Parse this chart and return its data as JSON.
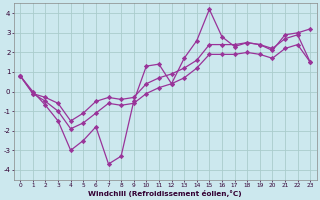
{
  "xlabel": "Windchill (Refroidissement éolien,°C)",
  "background_color": "#cce8ee",
  "line_color": "#993399",
  "grid_color": "#aacccc",
  "xlim": [
    -0.5,
    23.5
  ],
  "ylim": [
    -4.5,
    4.5
  ],
  "hours": [
    0,
    1,
    2,
    3,
    4,
    5,
    6,
    7,
    8,
    9,
    10,
    11,
    12,
    13,
    14,
    15,
    16,
    17,
    18,
    19,
    20,
    21,
    22,
    23
  ],
  "main_values": [
    0.8,
    0.0,
    -0.7,
    -1.5,
    -3.0,
    -2.5,
    -1.8,
    -3.7,
    -3.3,
    -0.5,
    1.3,
    1.4,
    0.4,
    1.7,
    2.6,
    4.2,
    2.8,
    2.3,
    2.5,
    2.4,
    2.1,
    2.9,
    3.0,
    3.2
  ],
  "upper_values": [
    0.8,
    -0.1,
    -0.3,
    -0.6,
    -1.5,
    -1.1,
    -0.5,
    -0.3,
    -0.4,
    -0.3,
    0.4,
    0.7,
    0.9,
    1.2,
    1.6,
    2.4,
    2.4,
    2.4,
    2.5,
    2.4,
    2.2,
    2.7,
    2.9,
    1.5
  ],
  "lower_values": [
    0.8,
    -0.1,
    -0.5,
    -1.0,
    -1.9,
    -1.6,
    -1.1,
    -0.6,
    -0.7,
    -0.6,
    -0.1,
    0.2,
    0.4,
    0.7,
    1.2,
    1.9,
    1.9,
    1.9,
    2.0,
    1.9,
    1.7,
    2.2,
    2.4,
    1.5
  ],
  "xtick_labels": [
    "0",
    "1",
    "2",
    "3",
    "4",
    "5",
    "6",
    "7",
    "8",
    "9",
    "10",
    "11",
    "12",
    "13",
    "14",
    "15",
    "16",
    "17",
    "18",
    "19",
    "20",
    "21",
    "22",
    "23"
  ],
  "ytick_values": [
    -4,
    -3,
    -2,
    -1,
    0,
    1,
    2,
    3,
    4
  ],
  "figsize": [
    3.2,
    2.0
  ],
  "dpi": 100
}
